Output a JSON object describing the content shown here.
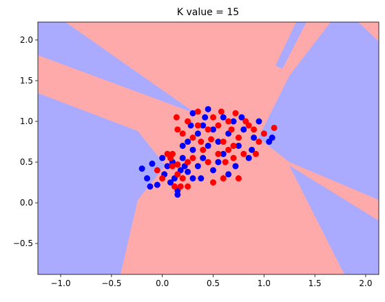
{
  "chart_data": {
    "type": "scatter",
    "title": "K value = 15",
    "xlim": [
      -1.224,
      2.129
    ],
    "ylim": [
      -0.88,
      2.22
    ],
    "xticks": [
      {
        "value": -1.0,
        "label": "−1.0"
      },
      {
        "value": -0.5,
        "label": "−0.5"
      },
      {
        "value": 0.0,
        "label": "0.0"
      },
      0.5,
      {
        "value": 1.0,
        "label": "1.0"
      },
      1.5,
      {
        "value": 2.0,
        "label": "2.0"
      }
    ],
    "yticks": [
      {
        "value": -0.5,
        "label": "−0.5"
      },
      {
        "value": 0.0,
        "label": "0.0"
      },
      0.5,
      {
        "value": 1.0,
        "label": "1.0"
      },
      1.5,
      {
        "value": 2.0,
        "label": "2.0"
      }
    ],
    "series": [
      {
        "color": "#0000ff",
        "x": [
          -0.2,
          -0.15,
          -0.1,
          -0.05,
          0.0,
          0.02,
          0.05,
          0.08,
          0.1,
          0.12,
          0.15,
          0.18,
          -0.12,
          0.2,
          0.25,
          0.3,
          0.35,
          0.4,
          0.3,
          0.25,
          0.35,
          0.4,
          0.3,
          0.45,
          0.5,
          0.55,
          0.6,
          0.65,
          0.7,
          0.75,
          0.8,
          0.85,
          0.9,
          0.95,
          1.05,
          1.08,
          0.5,
          0.45,
          0.6,
          0.72,
          0.38,
          0.2,
          0.55,
          0.65,
          0.42,
          0.28,
          0.88,
          0.78,
          0.15,
          0.22
        ],
        "y": [
          0.42,
          0.3,
          0.48,
          0.22,
          0.55,
          0.35,
          0.45,
          0.25,
          0.5,
          0.3,
          0.15,
          0.4,
          0.2,
          0.55,
          0.38,
          0.3,
          0.45,
          0.55,
          0.65,
          0.75,
          0.85,
          0.95,
          1.1,
          1.15,
          0.9,
          0.75,
          0.6,
          0.85,
          1.0,
          0.7,
          0.9,
          0.55,
          0.8,
          1.0,
          0.75,
          0.8,
          0.4,
          0.7,
          1.05,
          0.45,
          0.3,
          0.7,
          0.5,
          0.35,
          1.05,
          0.95,
          0.65,
          1.05,
          0.1,
          0.45
        ]
      },
      {
        "color": "#ff0000",
        "x": [
          -0.05,
          0.0,
          0.05,
          0.1,
          0.12,
          0.15,
          0.2,
          0.08,
          0.18,
          0.25,
          0.15,
          0.14,
          0.15,
          0.2,
          0.25,
          0.3,
          0.35,
          0.38,
          0.45,
          0.5,
          0.55,
          0.55,
          0.6,
          0.62,
          0.65,
          0.68,
          0.7,
          0.75,
          0.8,
          0.85,
          0.9,
          0.95,
          1.0,
          1.1,
          0.5,
          0.45,
          0.75,
          0.72,
          0.4,
          0.6,
          0.3,
          0.82,
          0.48,
          0.58,
          0.92,
          0.25,
          0.35,
          0.65,
          0.7,
          0.1
        ],
        "y": [
          0.4,
          0.3,
          0.6,
          0.45,
          0.2,
          0.35,
          0.3,
          0.55,
          0.2,
          0.5,
          0.47,
          1.05,
          0.9,
          0.85,
          1.0,
          0.8,
          1.12,
          0.75,
          0.9,
          1.05,
          0.95,
          0.6,
          0.75,
          0.5,
          0.65,
          0.9,
          0.55,
          0.8,
          0.6,
          0.95,
          0.9,
          0.75,
          0.85,
          0.92,
          0.25,
          0.5,
          0.3,
          1.1,
          0.65,
          0.3,
          0.55,
          1.0,
          0.78,
          1.12,
          0.6,
          0.2,
          0.95,
          1.0,
          0.7,
          0.6
        ]
      }
    ]
  }
}
